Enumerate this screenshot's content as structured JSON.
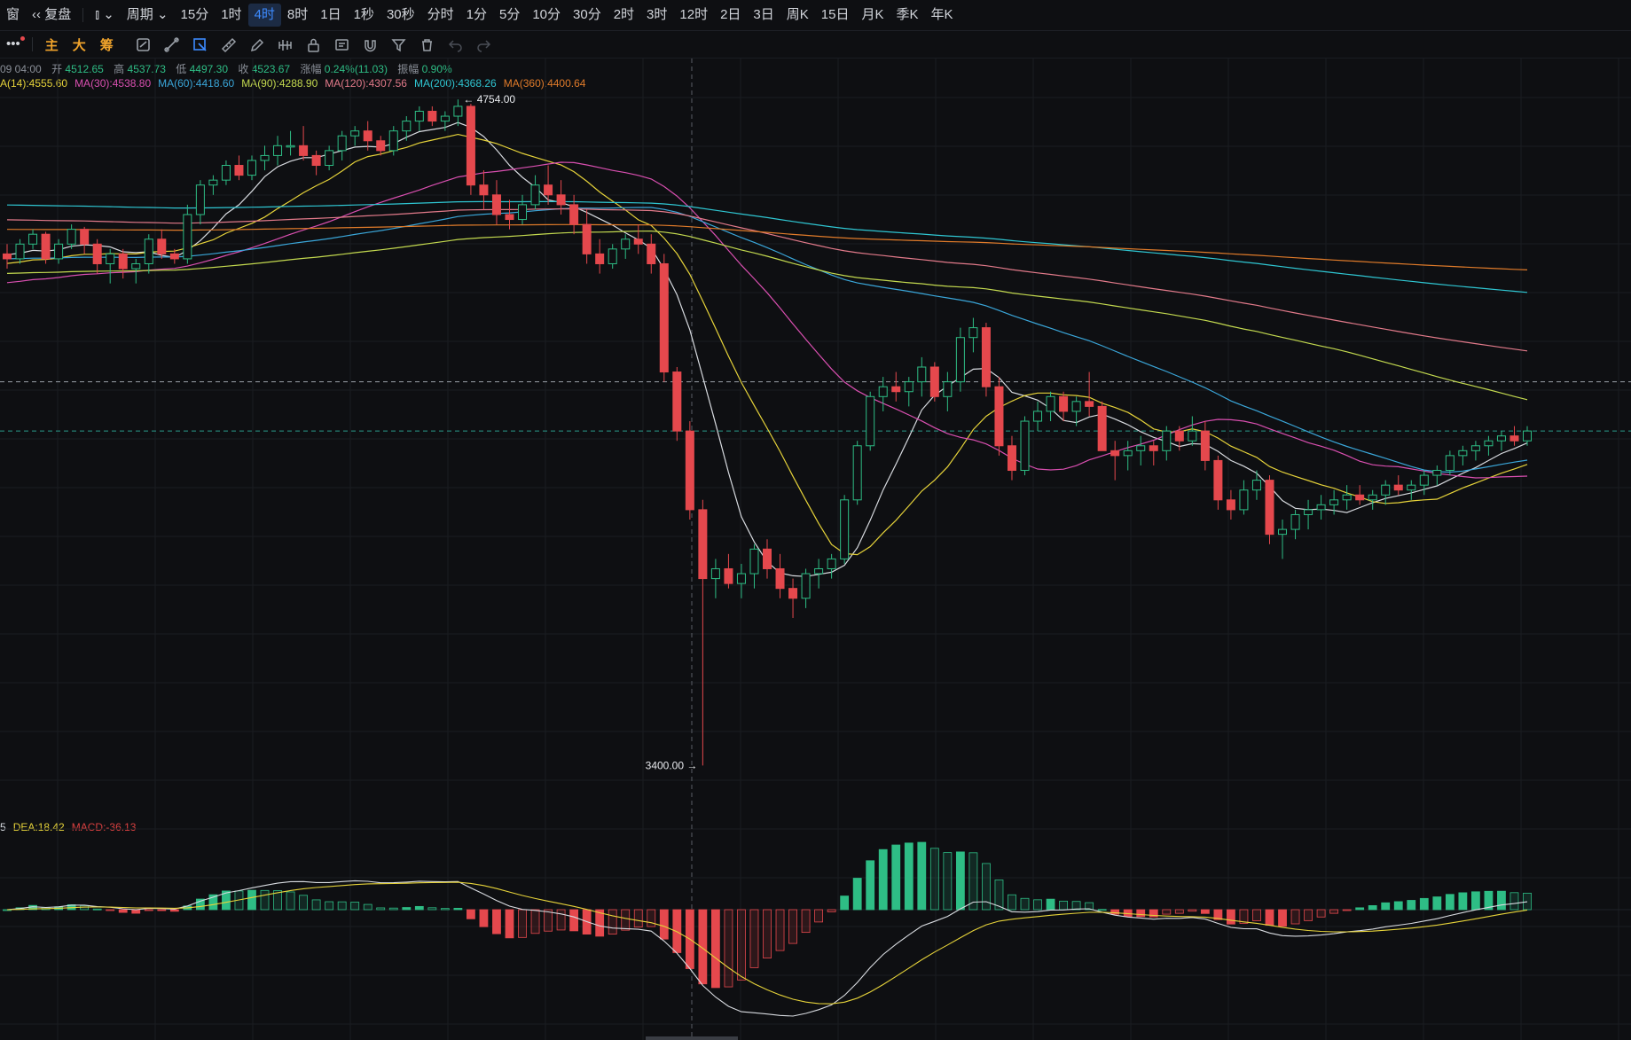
{
  "toolbar": {
    "window_label": "窗",
    "replay_label": "复盘",
    "period_label": "周期",
    "intervals": [
      "15分",
      "1时",
      "4时",
      "8时",
      "1日",
      "1秒",
      "30秒",
      "分时",
      "1分",
      "5分",
      "10分",
      "30分",
      "2时",
      "3时",
      "12时",
      "2日",
      "3日",
      "周K",
      "15日",
      "月K",
      "季K",
      "年K"
    ],
    "active_interval": "4时"
  },
  "draw_tools": {
    "more_label": "•••",
    "indicators": [
      {
        "label": "主",
        "color": "#f0a32b"
      },
      {
        "label": "大",
        "color": "#f0a32b"
      },
      {
        "label": "筹",
        "color": "#f0a32b"
      }
    ],
    "icons": [
      "cycle-icon",
      "line-tool-icon",
      "cursor-tool-icon",
      "ruler-icon",
      "pencil-icon",
      "pattern-icon",
      "lock-icon",
      "note-icon",
      "magnet-icon",
      "filter-icon",
      "trash-icon",
      "undo-icon",
      "redo-icon"
    ]
  },
  "info_line": {
    "date": "09 04:00",
    "open_label": "开",
    "open": "4512.65",
    "high_label": "高",
    "high": "4537.73",
    "low_label": "低",
    "low": "4497.30",
    "close_label": "收",
    "close": "4523.67",
    "change_label": "涨幅",
    "change": "0.24%(11.03)",
    "amplitude_label": "振幅",
    "amplitude": "0.90%"
  },
  "ma_legend": [
    {
      "text": "A(14):4555.60",
      "color": "#e6d33a"
    },
    {
      "text": "MA(30):4538.80",
      "color": "#d94fb0"
    },
    {
      "text": "MA(60):4418.60",
      "color": "#3aa6d9"
    },
    {
      "text": "MA(90):4288.90",
      "color": "#c3d94f"
    },
    {
      "text": "MA(120):4307.56",
      "color": "#e27a8a"
    },
    {
      "text": "MA(200):4368.26",
      "color": "#2fc6d2"
    },
    {
      "text": "MA(360):4400.64",
      "color": "#e07b2a"
    }
  ],
  "macd_legend": [
    {
      "text": "5",
      "color": "#d9dde3"
    },
    {
      "text": "DEA:18.42",
      "color": "#e6d33a"
    },
    {
      "text": "MACD:-36.13",
      "color": "#d94040"
    }
  ],
  "chart_data": {
    "type": "candlestick",
    "price_range": [
      3280,
      4830
    ],
    "high_marker": "4754.00",
    "low_marker": "3400.00",
    "candles": [
      [
        4440,
        4460,
        4410,
        4430
      ],
      [
        4430,
        4470,
        4420,
        4460
      ],
      [
        4460,
        4490,
        4450,
        4480
      ],
      [
        4480,
        4485,
        4420,
        4430
      ],
      [
        4430,
        4470,
        4420,
        4460
      ],
      [
        4460,
        4500,
        4450,
        4490
      ],
      [
        4490,
        4495,
        4440,
        4460
      ],
      [
        4460,
        4470,
        4400,
        4420
      ],
      [
        4420,
        4450,
        4380,
        4440
      ],
      [
        4440,
        4450,
        4390,
        4410
      ],
      [
        4410,
        4430,
        4380,
        4420
      ],
      [
        4420,
        4480,
        4400,
        4470
      ],
      [
        4470,
        4490,
        4430,
        4440
      ],
      [
        4440,
        4450,
        4420,
        4430
      ],
      [
        4430,
        4540,
        4420,
        4520
      ],
      [
        4520,
        4590,
        4500,
        4580
      ],
      [
        4580,
        4600,
        4560,
        4590
      ],
      [
        4590,
        4630,
        4580,
        4620
      ],
      [
        4620,
        4640,
        4590,
        4600
      ],
      [
        4600,
        4640,
        4590,
        4630
      ],
      [
        4630,
        4660,
        4610,
        4640
      ],
      [
        4640,
        4680,
        4620,
        4660
      ],
      [
        4660,
        4690,
        4640,
        4660
      ],
      [
        4660,
        4700,
        4630,
        4640
      ],
      [
        4640,
        4650,
        4600,
        4620
      ],
      [
        4620,
        4660,
        4610,
        4650
      ],
      [
        4650,
        4690,
        4630,
        4680
      ],
      [
        4680,
        4700,
        4660,
        4690
      ],
      [
        4690,
        4710,
        4650,
        4670
      ],
      [
        4670,
        4680,
        4640,
        4650
      ],
      [
        4650,
        4700,
        4640,
        4690
      ],
      [
        4690,
        4720,
        4670,
        4710
      ],
      [
        4710,
        4740,
        4690,
        4730
      ],
      [
        4730,
        4740,
        4700,
        4710
      ],
      [
        4710,
        4730,
        4690,
        4720
      ],
      [
        4720,
        4754,
        4700,
        4740
      ],
      [
        4740,
        4745,
        4560,
        4580
      ],
      [
        4580,
        4610,
        4530,
        4560
      ],
      [
        4560,
        4590,
        4500,
        4520
      ],
      [
        4520,
        4550,
        4490,
        4510
      ],
      [
        4510,
        4560,
        4500,
        4540
      ],
      [
        4540,
        4600,
        4530,
        4580
      ],
      [
        4580,
        4620,
        4540,
        4560
      ],
      [
        4560,
        4590,
        4520,
        4540
      ],
      [
        4540,
        4560,
        4480,
        4500
      ],
      [
        4500,
        4530,
        4420,
        4440
      ],
      [
        4440,
        4470,
        4400,
        4420
      ],
      [
        4420,
        4460,
        4410,
        4450
      ],
      [
        4450,
        4480,
        4430,
        4470
      ],
      [
        4470,
        4500,
        4440,
        4460
      ],
      [
        4460,
        4480,
        4400,
        4420
      ],
      [
        4420,
        4440,
        4180,
        4200
      ],
      [
        4200,
        4210,
        4060,
        4080
      ],
      [
        4080,
        4100,
        3900,
        3920
      ],
      [
        3920,
        3940,
        3400,
        3780
      ],
      [
        3780,
        3820,
        3740,
        3800
      ],
      [
        3800,
        3830,
        3760,
        3770
      ],
      [
        3770,
        3810,
        3740,
        3790
      ],
      [
        3790,
        3850,
        3760,
        3840
      ],
      [
        3840,
        3860,
        3780,
        3800
      ],
      [
        3800,
        3830,
        3740,
        3760
      ],
      [
        3760,
        3780,
        3700,
        3740
      ],
      [
        3740,
        3800,
        3720,
        3790
      ],
      [
        3790,
        3820,
        3760,
        3800
      ],
      [
        3800,
        3830,
        3780,
        3820
      ],
      [
        3820,
        3950,
        3810,
        3940
      ],
      [
        3940,
        4060,
        3930,
        4050
      ],
      [
        4050,
        4160,
        4040,
        4150
      ],
      [
        4150,
        4190,
        4120,
        4170
      ],
      [
        4170,
        4200,
        4140,
        4160
      ],
      [
        4160,
        4190,
        4130,
        4180
      ],
      [
        4180,
        4230,
        4150,
        4210
      ],
      [
        4210,
        4220,
        4140,
        4150
      ],
      [
        4150,
        4200,
        4120,
        4180
      ],
      [
        4180,
        4290,
        4160,
        4270
      ],
      [
        4270,
        4310,
        4240,
        4290
      ],
      [
        4290,
        4300,
        4150,
        4170
      ],
      [
        4170,
        4190,
        4030,
        4050
      ],
      [
        4050,
        4070,
        3980,
        4000
      ],
      [
        4000,
        4110,
        3990,
        4100
      ],
      [
        4100,
        4140,
        4080,
        4120
      ],
      [
        4120,
        4160,
        4100,
        4150
      ],
      [
        4150,
        4160,
        4100,
        4120
      ],
      [
        4120,
        4150,
        4090,
        4140
      ],
      [
        4140,
        4200,
        4110,
        4130
      ],
      [
        4130,
        4140,
        4040,
        4040
      ],
      [
        4040,
        4060,
        3980,
        4030
      ],
      [
        4030,
        4060,
        4000,
        4040
      ],
      [
        4040,
        4070,
        4010,
        4050
      ],
      [
        4050,
        4060,
        4010,
        4040
      ],
      [
        4040,
        4090,
        4020,
        4080
      ],
      [
        4080,
        4090,
        4040,
        4060
      ],
      [
        4060,
        4110,
        4050,
        4080
      ],
      [
        4080,
        4100,
        4000,
        4020
      ],
      [
        4020,
        4030,
        3920,
        3940
      ],
      [
        3940,
        3960,
        3900,
        3920
      ],
      [
        3920,
        3980,
        3910,
        3960
      ],
      [
        3960,
        4000,
        3940,
        3980
      ],
      [
        3980,
        3990,
        3850,
        3870
      ],
      [
        3870,
        3900,
        3820,
        3880
      ],
      [
        3880,
        3920,
        3860,
        3910
      ],
      [
        3910,
        3940,
        3880,
        3920
      ],
      [
        3920,
        3950,
        3900,
        3930
      ],
      [
        3930,
        3960,
        3910,
        3940
      ],
      [
        3940,
        3970,
        3920,
        3950
      ],
      [
        3950,
        3970,
        3930,
        3940
      ],
      [
        3940,
        3960,
        3920,
        3950
      ],
      [
        3950,
        3980,
        3930,
        3970
      ],
      [
        3970,
        3990,
        3950,
        3960
      ],
      [
        3960,
        3980,
        3940,
        3970
      ],
      [
        3970,
        4000,
        3950,
        3990
      ],
      [
        3990,
        4010,
        3970,
        4000
      ],
      [
        4000,
        4040,
        3990,
        4030
      ],
      [
        4030,
        4050,
        4010,
        4040
      ],
      [
        4040,
        4060,
        4020,
        4050
      ],
      [
        4050,
        4070,
        4030,
        4060
      ],
      [
        4060,
        4080,
        4040,
        4070
      ],
      [
        4070,
        4090,
        4050,
        4060
      ],
      [
        4060,
        4090,
        4050,
        4080
      ]
    ]
  },
  "colors": {
    "up": "#2ebd85",
    "down": "#e5484d",
    "accent": "#3d8bff",
    "background": "#0e0f12"
  }
}
